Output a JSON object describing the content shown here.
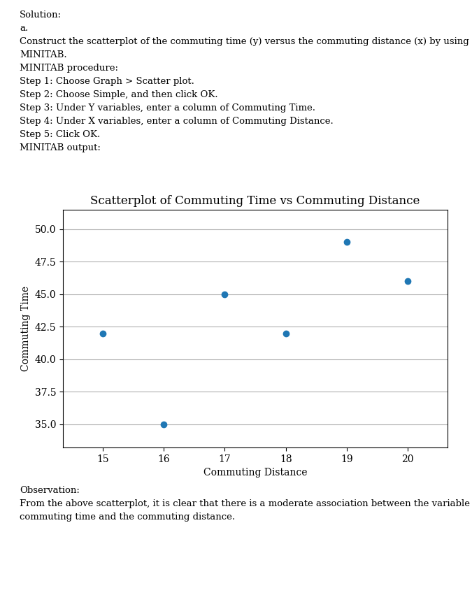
{
  "chart_data": {
    "type": "scatter",
    "title": "Scatterplot of Commuting Time vs Commuting Distance",
    "x_label": "Commuting Distance",
    "y_label": "Commuting Time",
    "x": [
      15,
      16,
      17,
      18,
      19,
      20
    ],
    "values": [
      42,
      35,
      45,
      42,
      49,
      46
    ],
    "xlim": [
      14.35,
      20.65
    ],
    "ylim": [
      33.2,
      51.5
    ],
    "xticks": [
      15,
      16,
      17,
      18,
      19,
      20
    ],
    "yticks": [
      35.0,
      37.5,
      40.0,
      42.5,
      45.0,
      47.5,
      50.0
    ],
    "grid": "y",
    "annotations": [
      [
        "Solution:",
        "a.",
        "Construct the scatterplot of the commuting time (y) versus the commuting distance (x) by using",
        "MINITAB.",
        "MINITAB procedure:",
        "Step 1: Choose Graph > Scatter plot.",
        "Step 2: Choose Simple, and then click OK.",
        "Step 3: Under Y variables, enter a column of Commuting Time.",
        "Step 4: Under X variables, enter a column of Commuting Distance.",
        "Step 5: Click OK.",
        "MINITAB output:"
      ],
      [
        "Observation:",
        "From the above scatterplot, it is clear that there is a moderate association between the variable",
        "commuting time and the commuting distance."
      ]
    ]
  }
}
